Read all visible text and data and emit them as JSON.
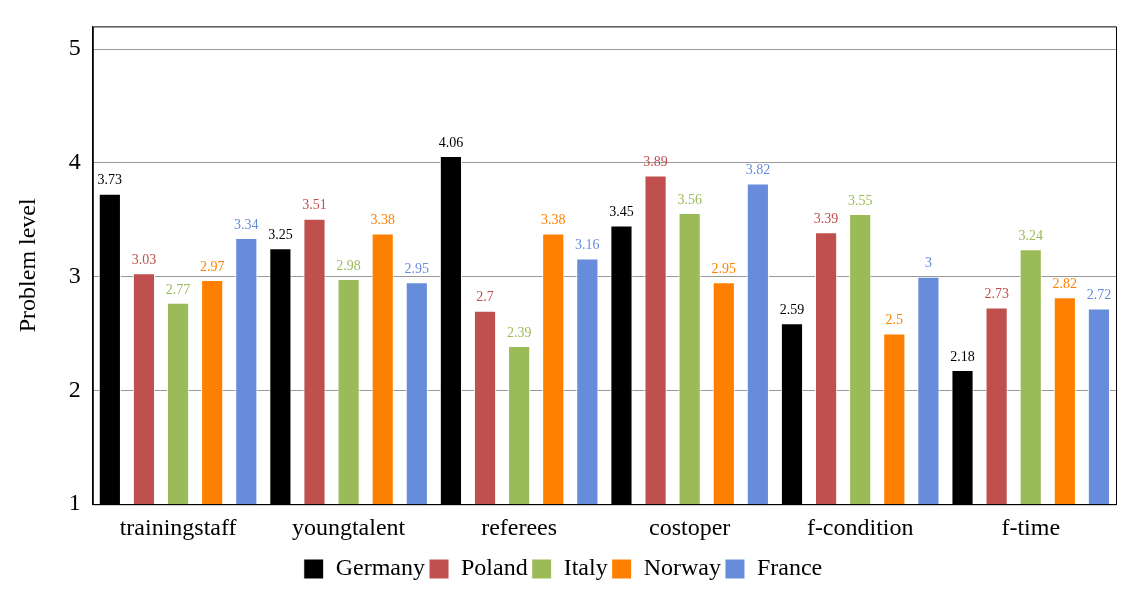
{
  "chart_data": {
    "type": "bar",
    "ylabel": "Problem level",
    "categories": [
      "trainingstaff",
      "youngtalent",
      "referees",
      "costoper",
      "f-condition",
      "f-time"
    ],
    "series": [
      {
        "name": "Germany",
        "color": "#000000",
        "values": [
          3.73,
          3.25,
          4.06,
          3.45,
          2.59,
          2.18
        ]
      },
      {
        "name": "Poland",
        "color": "#c0504d",
        "values": [
          3.03,
          3.51,
          2.7,
          3.89,
          3.39,
          2.73
        ]
      },
      {
        "name": "Italy",
        "color": "#9bbb59",
        "values": [
          2.77,
          2.98,
          2.39,
          3.56,
          3.55,
          3.24
        ]
      },
      {
        "name": "Norway",
        "color": "#ff8000",
        "values": [
          2.97,
          3.38,
          3.38,
          2.95,
          2.5,
          2.82
        ]
      },
      {
        "name": "France",
        "color": "#668cdb",
        "values": [
          3.34,
          2.95,
          3.16,
          3.82,
          3,
          2.72
        ]
      }
    ],
    "ylim": [
      1,
      5.2
    ],
    "yticks": [
      1,
      2,
      3,
      4,
      5
    ],
    "grid": "y",
    "legend": "bottom",
    "data_labels": true
  }
}
